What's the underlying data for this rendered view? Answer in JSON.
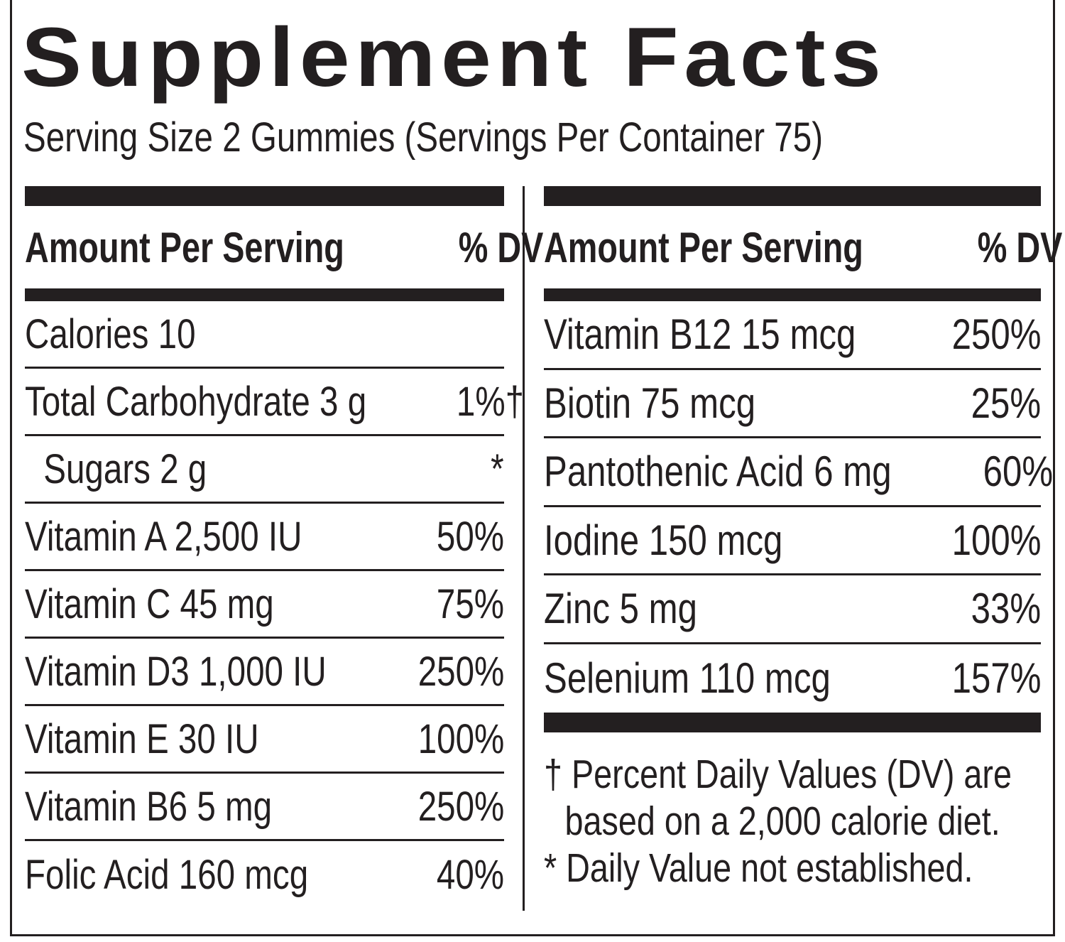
{
  "title": "Supplement Facts",
  "serving": "Serving Size 2 Gummies  (Servings Per Container 75)",
  "left": {
    "header_amount": "Amount Per Serving",
    "header_dv": "% DV",
    "rows": [
      {
        "name": "Calories 10",
        "dv": ""
      },
      {
        "name": "Total Carbohydrate 3 g",
        "dv": "1%†"
      },
      {
        "name": "Sugars 2 g",
        "dv": "*"
      },
      {
        "name": "Vitamin A 2,500 IU",
        "dv": "50%"
      },
      {
        "name": "Vitamin C 45 mg",
        "dv": "75%"
      },
      {
        "name": "Vitamin D3 1,000 IU",
        "dv": "250%"
      },
      {
        "name": "Vitamin E 30 IU",
        "dv": "100%"
      },
      {
        "name": "Vitamin B6 5 mg",
        "dv": "250%"
      },
      {
        "name": "Folic Acid 160 mcg",
        "dv": "40%"
      }
    ]
  },
  "right": {
    "header_amount": "Amount Per Serving",
    "header_dv": "% DV",
    "rows": [
      {
        "name": "Vitamin B12 15 mcg",
        "dv": "250%"
      },
      {
        "name": "Biotin 75 mcg",
        "dv": "25%"
      },
      {
        "name": "Pantothenic Acid 6 mg",
        "dv": "60%"
      },
      {
        "name": "Iodine 150 mcg",
        "dv": "100%"
      },
      {
        "name": "Zinc 5 mg",
        "dv": "33%"
      },
      {
        "name": "Selenium 110 mcg",
        "dv": "157%"
      }
    ]
  },
  "footnotes": {
    "line1": "† Percent Daily Values (DV) are",
    "line2": "based on a 2,000 calorie diet.",
    "line3": "* Daily Value not established."
  }
}
